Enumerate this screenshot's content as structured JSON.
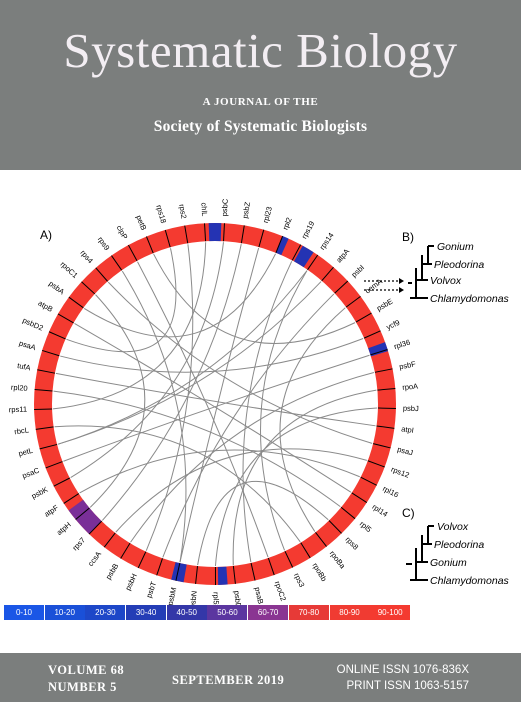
{
  "journal": {
    "title": "Systematic Biology",
    "subtitle_line1": "A JOURNAL OF THE",
    "subtitle_line2": "Society of Systematic Biologists"
  },
  "figure": {
    "panel_a_label": "A)",
    "panel_b_label": "B)",
    "panel_c_label": "C)",
    "ring_color": "#f43a30",
    "gene_labels": [
      "psbC",
      "psbZ",
      "rpl23",
      "rpl2",
      "rps19",
      "rps14",
      "atpA",
      "psbI",
      "cemA",
      "psbE",
      "ycf9",
      "rpl36",
      "psbF",
      "rpoA",
      "psbJ",
      "atpI",
      "psaJ",
      "rps12",
      "rpl16",
      "rpl14",
      "rpl5",
      "rps8",
      "rpoBa",
      "rpoBb",
      "rps3",
      "rpoC2",
      "psaB",
      "psbD",
      "rpl5x",
      "psbN",
      "psbM",
      "psbT",
      "psbH",
      "psbB",
      "ccsA",
      "rps7",
      "atpH",
      "atpF",
      "psbK",
      "psaC",
      "petL",
      "rbcL",
      "rps11",
      "rpl20",
      "tufA",
      "psaA",
      "psbD2",
      "atpB",
      "psbA",
      "rpoC1",
      "rps4",
      "rps9",
      "clpP",
      "petB",
      "rps18",
      "rps2",
      "chlL"
    ],
    "tree_b_taxa": [
      "Gonium",
      "Pleodorina",
      "Volvox",
      "Chlamydomonas"
    ],
    "tree_c_taxa": [
      "Volvox",
      "Pleodorina",
      "Gonium",
      "Chlamydomonas"
    ]
  },
  "legend": [
    {
      "label": "0-10",
      "color": "#1a56e6"
    },
    {
      "label": "10-20",
      "color": "#1a50d8"
    },
    {
      "label": "20-30",
      "color": "#1d47c8"
    },
    {
      "label": "30-40",
      "color": "#243db6"
    },
    {
      "label": "40-50",
      "color": "#3437a8"
    },
    {
      "label": "50-60",
      "color": "#5b36a0"
    },
    {
      "label": "60-70",
      "color": "#8a3592"
    },
    {
      "label": "70-80",
      "color": "#e73a37"
    },
    {
      "label": "80-90",
      "color": "#f03b32"
    },
    {
      "label": "90-100",
      "color": "#f43a30"
    }
  ],
  "footer": {
    "volume": "VOLUME 68",
    "number": "NUMBER 5",
    "date": "SEPTEMBER  2019",
    "online_issn": "ONLINE ISSN 1076-836X",
    "print_issn": "PRINT ISSN 1063-5157"
  }
}
